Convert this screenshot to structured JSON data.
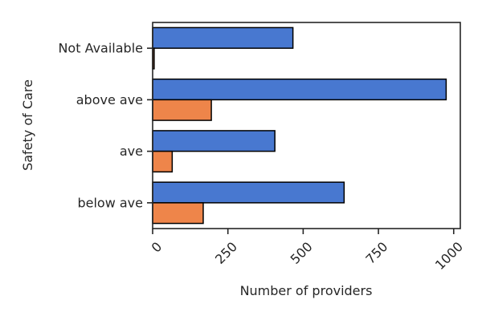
{
  "chart_data": {
    "type": "bar",
    "orientation": "horizontal",
    "categories": [
      "Not Available",
      "above ave",
      "ave",
      "below ave"
    ],
    "series": [
      {
        "values": [
          466,
          975,
          406,
          636
        ],
        "color": "#4878d0"
      },
      {
        "values": [
          5,
          195,
          65,
          168
        ],
        "color": "#ee854a"
      }
    ],
    "xlabel": "Number of providers",
    "ylabel": "Safety of Care",
    "xlim": [
      0,
      1022
    ],
    "xticks": [
      0,
      250,
      500,
      750,
      1000
    ],
    "xtick_labels": [
      "0",
      "250",
      "500",
      "750",
      "1000"
    ],
    "grid": false,
    "legend": "none"
  }
}
